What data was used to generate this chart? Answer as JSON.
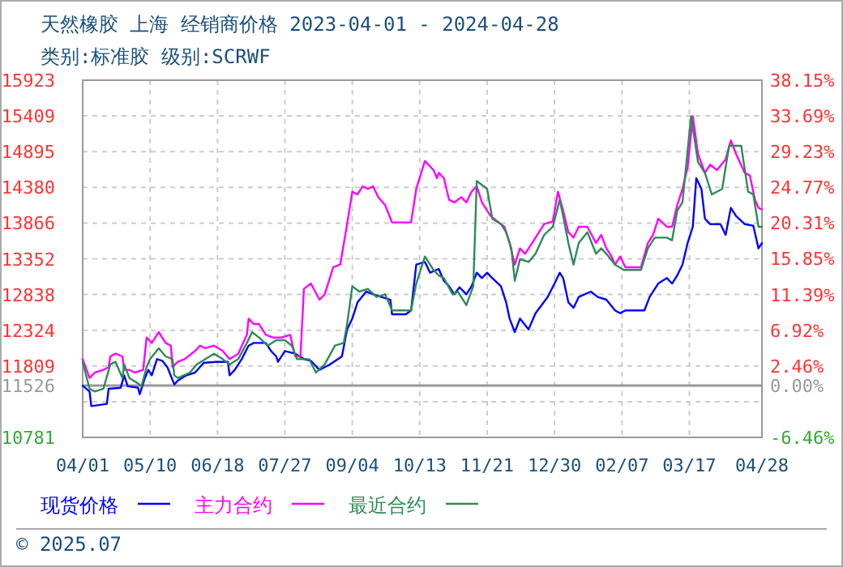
{
  "chart_data": {
    "type": "line",
    "title": "天然橡胶 上海 经销商价格 2023-04-01 - 2024-04-28",
    "subtitle": "类别:标准胶 级别:SCRWF",
    "xlim": [
      "2023-04-01",
      "2024-04-28"
    ],
    "xticks": [
      {
        "value": "2023-04-01",
        "label": "04/01"
      },
      {
        "value": "2023-05-10",
        "label": "05/10"
      },
      {
        "value": "2023-06-18",
        "label": "06/18"
      },
      {
        "value": "2023-07-27",
        "label": "07/27"
      },
      {
        "value": "2023-09-04",
        "label": "09/04"
      },
      {
        "value": "2023-10-13",
        "label": "10/13"
      },
      {
        "value": "2023-11-21",
        "label": "11/21"
      },
      {
        "value": "2023-12-30",
        "label": "12/30"
      },
      {
        "value": "2024-02-07",
        "label": "02/07"
      },
      {
        "value": "2024-03-17",
        "label": "03/17"
      },
      {
        "value": "2024-04-28",
        "label": "04/28"
      }
    ],
    "ylim": [
      10781,
      15923
    ],
    "yticks": [
      10781,
      {
        "value": 11295,
        "label": null
      },
      11526,
      11809,
      12324,
      12838,
      13352,
      13866,
      14380,
      14895,
      15409,
      15923
    ],
    "y2lim": [
      -6.46,
      38.15
    ],
    "y2ticks": [
      {
        "value": -6.46,
        "label": "-6.46%"
      },
      {
        "value": 0,
        "label": "0.00%"
      },
      {
        "value": 2.46,
        "label": "2.46%"
      },
      {
        "value": 6.92,
        "label": "6.92%"
      },
      {
        "value": 11.39,
        "label": "11.39%"
      },
      {
        "value": 15.85,
        "label": "15.85%"
      },
      {
        "value": 20.31,
        "label": "20.31%"
      },
      {
        "value": 24.77,
        "label": "24.77%"
      },
      {
        "value": 29.23,
        "label": "29.23%"
      },
      {
        "value": 33.69,
        "label": "33.69%"
      },
      {
        "value": 38.15,
        "label": "38.15%"
      }
    ],
    "ref_lines": [
      {
        "axis": "y",
        "value": 11526,
        "color": "#999999",
        "line_style": "solid"
      }
    ],
    "grid": true,
    "legend": "bottom",
    "annotations": [
      "© 2025.07"
    ],
    "series": [
      {
        "name": "现货价格",
        "color": "#0000ff",
        "x": [
          "2023-04-01",
          "2023-04-05",
          "2023-04-06",
          "2023-04-15",
          "2023-04-16",
          "2023-04-23",
          "2023-04-25",
          "2023-04-27",
          "2023-05-03",
          "2023-05-04",
          "2023-05-07",
          "2023-05-09",
          "2023-05-11",
          "2023-05-14",
          "2023-05-17",
          "2023-05-20",
          "2023-05-24",
          "2023-05-26",
          "2023-05-31",
          "2023-06-05",
          "2023-06-10",
          "2023-06-17",
          "2023-06-24",
          "2023-06-25",
          "2023-06-28",
          "2023-07-02",
          "2023-07-06",
          "2023-07-09",
          "2023-07-16",
          "2023-07-19",
          "2023-07-22",
          "2023-07-23",
          "2023-07-27",
          "2023-08-02",
          "2023-08-07",
          "2023-08-11",
          "2023-08-16",
          "2023-08-22",
          "2023-08-29",
          "2023-09-01",
          "2023-09-04",
          "2023-09-07",
          "2023-09-12",
          "2023-09-16",
          "2023-09-26",
          "2023-09-27",
          "2023-10-05",
          "2023-10-08",
          "2023-10-11",
          "2023-10-16",
          "2023-10-19",
          "2023-10-24",
          "2023-10-27",
          "2023-10-30",
          "2023-11-02",
          "2023-11-05",
          "2023-11-09",
          "2023-11-12",
          "2023-11-15",
          "2023-11-18",
          "2023-11-21",
          "2023-11-24",
          "2023-11-29",
          "2023-12-02",
          "2023-12-04",
          "2023-12-07",
          "2023-12-10",
          "2023-12-15",
          "2023-12-19",
          "2023-12-26",
          "2023-12-30",
          "2024-01-02",
          "2024-01-04",
          "2024-01-07",
          "2024-01-10",
          "2024-01-13",
          "2024-01-20",
          "2024-01-24",
          "2024-01-29",
          "2024-02-03",
          "2024-02-06",
          "2024-02-09",
          "2024-02-20",
          "2024-02-23",
          "2024-02-28",
          "2024-03-04",
          "2024-03-07",
          "2024-03-10",
          "2024-03-13",
          "2024-03-16",
          "2024-03-19",
          "2024-03-21",
          "2024-03-24",
          "2024-03-26",
          "2024-03-29",
          "2024-04-04",
          "2024-04-07",
          "2024-04-10",
          "2024-04-13",
          "2024-04-18",
          "2024-04-23",
          "2024-04-26",
          "2024-04-28"
        ],
        "values": [
          11526,
          11442,
          11232,
          11263,
          11481,
          11496,
          11675,
          11519,
          11496,
          11403,
          11636,
          11753,
          11675,
          11908,
          11885,
          11792,
          11543,
          11597,
          11675,
          11714,
          11854,
          11869,
          11869,
          11675,
          11753,
          11908,
          12102,
          12141,
          12141,
          12025,
          11947,
          11869,
          12025,
          11986,
          11908,
          11885,
          11753,
          11831,
          11947,
          12336,
          12491,
          12724,
          12880,
          12841,
          12763,
          12553,
          12553,
          12608,
          13268,
          13307,
          13152,
          13206,
          13035,
          12957,
          12841,
          12942,
          12841,
          12957,
          13152,
          13074,
          13152,
          13074,
          12957,
          12724,
          12491,
          12297,
          12491,
          12336,
          12569,
          12802,
          12996,
          13152,
          13074,
          12724,
          12647,
          12802,
          12880,
          12802,
          12763,
          12608,
          12569,
          12608,
          12608,
          12802,
          12996,
          13074,
          12996,
          13113,
          13268,
          13579,
          13813,
          14512,
          14357,
          13929,
          13851,
          13851,
          13696,
          14085,
          13968,
          13851,
          13828,
          13502,
          13579
        ]
      },
      {
        "name": "主力合约",
        "color": "#ff00ff",
        "x": [
          "2023-04-01",
          "2023-04-05",
          "2023-04-08",
          "2023-04-13",
          "2023-04-16",
          "2023-04-17",
          "2023-04-20",
          "2023-04-24",
          "2023-04-25",
          "2023-04-28",
          "2023-05-01",
          "2023-05-06",
          "2023-05-08",
          "2023-05-11",
          "2023-05-15",
          "2023-05-19",
          "2023-05-22",
          "2023-05-23",
          "2023-05-26",
          "2023-05-30",
          "2023-06-05",
          "2023-06-08",
          "2023-06-11",
          "2023-06-16",
          "2023-06-21",
          "2023-06-25",
          "2023-06-30",
          "2023-07-05",
          "2023-07-06",
          "2023-07-09",
          "2023-07-12",
          "2023-07-16",
          "2023-07-20",
          "2023-07-25",
          "2023-07-30",
          "2023-08-02",
          "2023-08-05",
          "2023-08-07",
          "2023-08-11",
          "2023-08-16",
          "2023-08-19",
          "2023-08-24",
          "2023-08-28",
          "2023-09-01",
          "2023-09-04",
          "2023-09-07",
          "2023-09-10",
          "2023-09-13",
          "2023-09-16",
          "2023-09-19",
          "2023-09-23",
          "2023-09-27",
          "2023-10-08",
          "2023-10-11",
          "2023-10-16",
          "2023-10-21",
          "2023-10-23",
          "2023-10-24",
          "2023-10-27",
          "2023-10-30",
          "2023-11-02",
          "2023-11-06",
          "2023-11-09",
          "2023-11-12",
          "2023-11-15",
          "2023-11-18",
          "2023-11-23",
          "2023-11-27",
          "2023-12-01",
          "2023-12-04",
          "2023-12-07",
          "2023-12-10",
          "2023-12-13",
          "2023-12-19",
          "2023-12-24",
          "2023-12-29",
          "2024-01-01",
          "2024-01-04",
          "2024-01-07",
          "2024-01-10",
          "2024-01-13",
          "2024-01-18",
          "2024-01-23",
          "2024-01-26",
          "2024-01-29",
          "2024-02-01",
          "2024-02-03",
          "2024-02-06",
          "2024-02-09",
          "2024-02-18",
          "2024-02-22",
          "2024-02-25",
          "2024-02-28",
          "2024-03-04",
          "2024-03-07",
          "2024-03-10",
          "2024-03-13",
          "2024-03-16",
          "2024-03-19",
          "2024-03-22",
          "2024-03-26",
          "2024-03-29",
          "2024-04-02",
          "2024-04-07",
          "2024-04-10",
          "2024-04-13",
          "2024-04-18",
          "2024-04-21",
          "2024-04-24",
          "2024-04-26",
          "2024-04-28"
        ],
        "values": [
          11908,
          11636,
          11714,
          11753,
          11792,
          11947,
          11986,
          11947,
          11753,
          11753,
          11714,
          11753,
          12219,
          12141,
          12297,
          12141,
          12102,
          11792,
          11869,
          11908,
          12025,
          12102,
          12064,
          12102,
          12025,
          11908,
          11986,
          12258,
          12491,
          12413,
          12413,
          12258,
          12219,
          12219,
          12258,
          11947,
          11947,
          12919,
          12996,
          12763,
          12841,
          13230,
          13268,
          13851,
          14318,
          14279,
          14396,
          14357,
          14396,
          14240,
          14124,
          13875,
          13875,
          14357,
          14761,
          14629,
          14512,
          14590,
          14512,
          14201,
          14163,
          14240,
          14163,
          14318,
          14396,
          14163,
          13968,
          13890,
          13813,
          13579,
          13268,
          13502,
          13424,
          13657,
          13851,
          13890,
          14318,
          14046,
          13735,
          13657,
          13813,
          13813,
          13579,
          13696,
          13502,
          13385,
          13268,
          13385,
          13230,
          13230,
          13579,
          13696,
          13929,
          13813,
          13813,
          14124,
          14357,
          14668,
          15406,
          14862,
          14590,
          14707,
          14629,
          14784,
          15056,
          14862,
          14590,
          14551,
          14201,
          14085,
          14062
        ]
      },
      {
        "name": "最近合约",
        "color": "#2e8b57",
        "x": [
          "2023-04-01",
          "2023-04-05",
          "2023-04-08",
          "2023-04-13",
          "2023-04-17",
          "2023-04-20",
          "2023-04-24",
          "2023-04-25",
          "2023-04-28",
          "2023-05-03",
          "2023-05-05",
          "2023-05-08",
          "2023-05-10",
          "2023-05-15",
          "2023-05-19",
          "2023-05-23",
          "2023-05-24",
          "2023-05-26",
          "2023-06-02",
          "2023-06-06",
          "2023-06-11",
          "2023-06-16",
          "2023-06-21",
          "2023-06-25",
          "2023-06-30",
          "2023-07-05",
          "2023-07-08",
          "2023-07-12",
          "2023-07-17",
          "2023-07-22",
          "2023-07-27",
          "2023-07-31",
          "2023-08-03",
          "2023-08-10",
          "2023-08-14",
          "2023-08-19",
          "2023-08-25",
          "2023-08-30",
          "2023-09-01",
          "2023-09-04",
          "2023-09-08",
          "2023-09-13",
          "2023-09-18",
          "2023-09-23",
          "2023-09-27",
          "2023-10-08",
          "2023-10-11",
          "2023-10-16",
          "2023-10-21",
          "2023-10-24",
          "2023-10-27",
          "2023-11-01",
          "2023-11-04",
          "2023-11-09",
          "2023-11-13",
          "2023-11-15",
          "2023-11-21",
          "2023-11-24",
          "2023-11-29",
          "2023-12-02",
          "2023-12-05",
          "2023-12-07",
          "2023-12-10",
          "2023-12-15",
          "2023-12-19",
          "2023-12-24",
          "2023-12-29",
          "2024-01-02",
          "2024-01-04",
          "2024-01-07",
          "2024-01-10",
          "2024-01-13",
          "2024-01-18",
          "2024-01-23",
          "2024-01-26",
          "2024-01-29",
          "2024-02-03",
          "2024-02-08",
          "2024-02-18",
          "2024-02-22",
          "2024-02-26",
          "2024-03-04",
          "2024-03-07",
          "2024-03-10",
          "2024-03-13",
          "2024-03-18",
          "2024-03-22",
          "2024-03-26",
          "2024-03-30",
          "2024-04-05",
          "2024-04-09",
          "2024-04-16",
          "2024-04-20",
          "2024-04-23",
          "2024-04-26",
          "2024-04-28"
        ],
        "values": [
          11869,
          11481,
          11442,
          11481,
          11831,
          11869,
          11636,
          11831,
          11636,
          11558,
          11519,
          11792,
          11908,
          12064,
          11947,
          11908,
          11675,
          11636,
          11714,
          11831,
          11908,
          11986,
          11908,
          11831,
          11908,
          12141,
          12297,
          12219,
          12102,
          12180,
          12180,
          12102,
          11908,
          11908,
          11714,
          11831,
          12102,
          12141,
          12413,
          12957,
          12880,
          12919,
          12802,
          12841,
          12608,
          12608,
          12996,
          13385,
          13191,
          13113,
          13074,
          12841,
          12880,
          12685,
          12957,
          14473,
          14357,
          13929,
          13851,
          13735,
          13502,
          13035,
          13346,
          13307,
          13424,
          13696,
          13813,
          14201,
          13968,
          13579,
          13268,
          13579,
          13735,
          13424,
          13502,
          13424,
          13268,
          13191,
          13191,
          13502,
          13657,
          13657,
          13618,
          14046,
          14163,
          15406,
          14745,
          14590,
          14279,
          14357,
          14978,
          14978,
          14318,
          14279,
          13813,
          13813
        ]
      }
    ]
  }
}
